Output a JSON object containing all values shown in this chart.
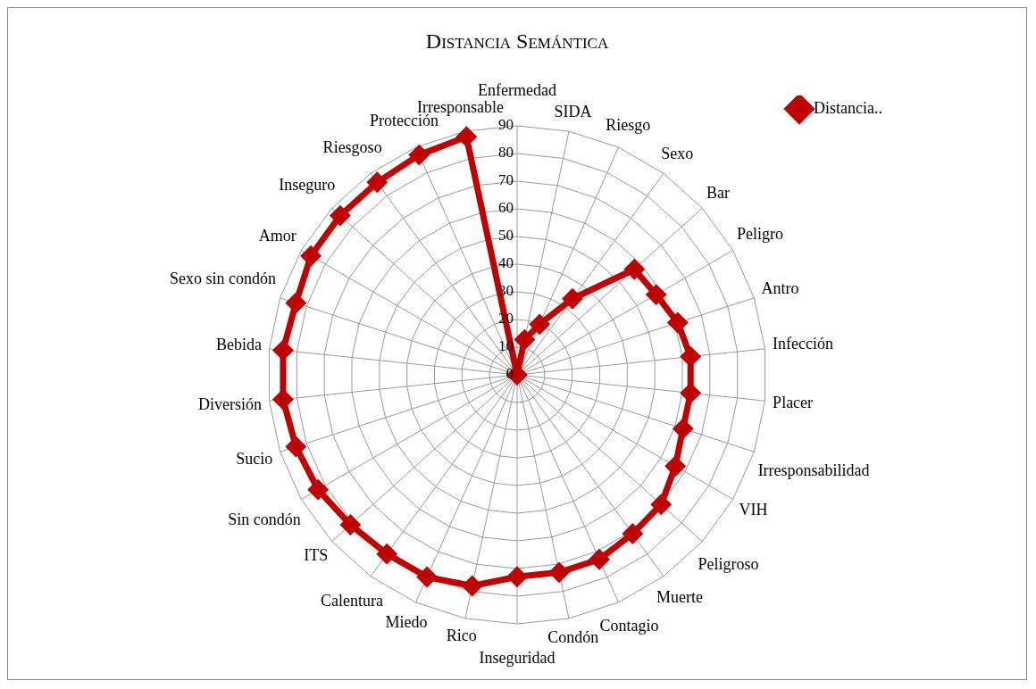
{
  "chart_data": {
    "type": "radar",
    "title": "Distancia Semántica",
    "categories": [
      "Enfermedad",
      "SIDA",
      "Riesgo",
      "Sexo",
      "Bar",
      "Peligro",
      "Antro",
      "Infección",
      "Placer",
      "Irresponsabilidad",
      "VIH",
      "Peligroso",
      "Muerte",
      "Contagio",
      "Condón",
      "Inseguridad",
      "Rico",
      "Miedo",
      "Calentura",
      "ITS",
      "Sin condón",
      "Sucio",
      "Diversión",
      "Bebida",
      "Sexo sin condón",
      "Amor",
      "Inseguro",
      "Riesgoso",
      "Protección",
      "Irresponsable"
    ],
    "series": [
      {
        "name": "Distancia..",
        "color": "#c00000",
        "values": [
          0,
          13,
          20,
          34,
          57,
          58,
          61,
          63,
          63,
          63,
          66,
          70,
          71,
          73,
          73,
          73,
          78,
          80,
          80,
          81,
          83,
          84,
          85,
          85,
          84,
          86,
          86,
          86,
          87,
          88
        ]
      }
    ],
    "ylim": [
      0,
      90
    ],
    "yticks": [
      0,
      10,
      20,
      30,
      40,
      50,
      60,
      70,
      80,
      90
    ],
    "grid": true,
    "legend": "top right",
    "marker": "diamond",
    "line_style": "solid"
  }
}
